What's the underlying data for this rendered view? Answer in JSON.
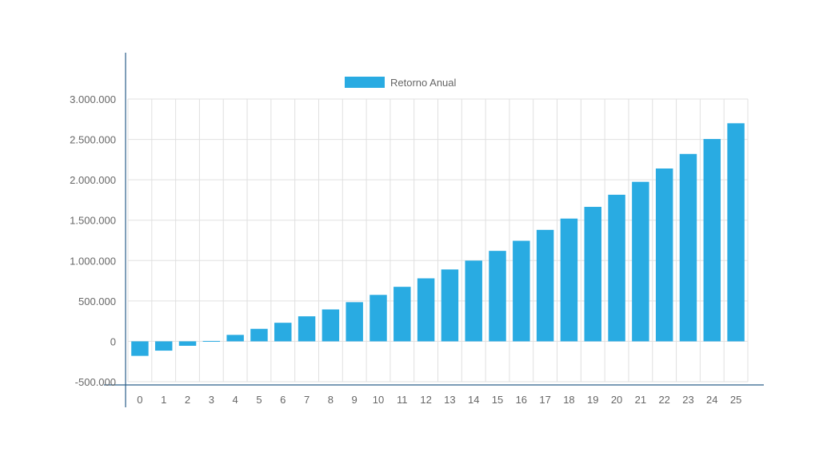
{
  "chart_data": {
    "type": "bar",
    "title": "",
    "xlabel": "",
    "ylabel": "",
    "categories": [
      "0",
      "1",
      "2",
      "3",
      "4",
      "5",
      "6",
      "7",
      "8",
      "9",
      "10",
      "11",
      "12",
      "13",
      "14",
      "15",
      "16",
      "17",
      "18",
      "19",
      "20",
      "21",
      "22",
      "23",
      "24",
      "25"
    ],
    "series": [
      {
        "name": "Retorno Anual",
        "color": "#29ABE2",
        "values": [
          -180000,
          -115000,
          -55000,
          5000,
          80000,
          155000,
          230000,
          310000,
          395000,
          485000,
          575000,
          675000,
          780000,
          890000,
          1000000,
          1120000,
          1245000,
          1380000,
          1520000,
          1665000,
          1815000,
          1975000,
          2140000,
          2320000,
          2505000,
          2700000
        ]
      }
    ],
    "ylim": [
      -500000,
      3000000
    ],
    "yticks": [
      -500000,
      0,
      500000,
      1000000,
      1500000,
      2000000,
      2500000,
      3000000
    ],
    "ytick_labels": [
      "-500.000",
      "0",
      "500.000",
      "1.000.000",
      "1.500.000",
      "2.000.000",
      "2.500.000",
      "3.000.000"
    ],
    "grid": true,
    "legend": "top-center",
    "colors": {
      "grid": "#e0e0e0",
      "axis": "#2b5f8a",
      "text": "#666666"
    }
  }
}
